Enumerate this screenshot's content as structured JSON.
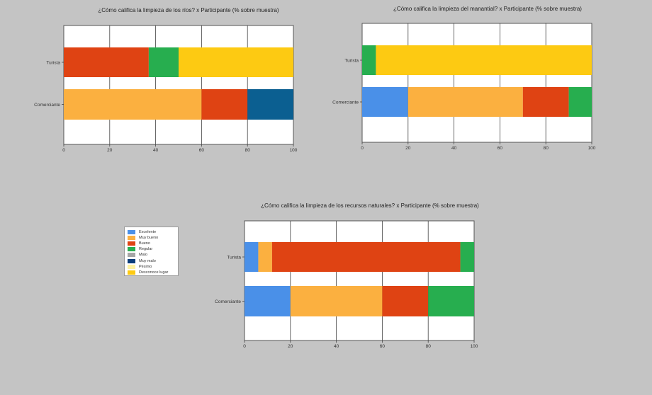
{
  "legend": [
    {
      "label": "Excelente",
      "color": "#4a90e8"
    },
    {
      "label": "Muy bueno",
      "color": "#fbb040"
    },
    {
      "label": "Bueno",
      "color": "#df4313"
    },
    {
      "label": "Regular",
      "color": "#27ae4f"
    },
    {
      "label": "Malo",
      "color": "#a6a6a6"
    },
    {
      "label": "Muy malo",
      "color": "#0b3c7a"
    },
    {
      "label": "Pésimo",
      "color": "#fff2a0"
    },
    {
      "label": "Desconoce lugar",
      "color": "#fdca12"
    }
  ],
  "chart_data": [
    {
      "type": "bar",
      "orientation": "horizontal",
      "stacked": true,
      "title": "¿Cómo califica la limpieza de los ríos? x Participante (% sobre muestra)",
      "categories": [
        "Turista",
        "Comerciante"
      ],
      "xlim": [
        0,
        100
      ],
      "xticks": [
        0,
        20,
        40,
        60,
        80,
        100
      ],
      "grid": true,
      "series": [
        {
          "name": "Bueno",
          "color": "#df4313",
          "values": [
            37,
            0
          ]
        },
        {
          "name": "Regular",
          "color": "#27ae4f",
          "values": [
            13,
            0
          ]
        },
        {
          "name": "Desconoce lugar",
          "color": "#fdca12",
          "values": [
            50,
            0
          ]
        },
        {
          "name": "Muy bueno",
          "color": "#fbb040",
          "values": [
            0,
            60
          ]
        },
        {
          "name": "Bueno",
          "color": "#df4313",
          "values": [
            0,
            20
          ]
        },
        {
          "name": "Muy malo",
          "color": "#0b5f91",
          "values": [
            0,
            20
          ]
        }
      ]
    },
    {
      "type": "bar",
      "orientation": "horizontal",
      "stacked": true,
      "title": "¿Cómo califica la limpieza del manantial? x Participante (% sobre muestra)",
      "categories": [
        "Turista",
        "Comerciante"
      ],
      "xlim": [
        0,
        100
      ],
      "xticks": [
        0,
        20,
        40,
        60,
        80,
        100
      ],
      "grid": true,
      "series": [
        {
          "name": "Regular",
          "color": "#27ae4f",
          "values": [
            6,
            0
          ]
        },
        {
          "name": "Desconoce lugar",
          "color": "#fdca12",
          "values": [
            94,
            0
          ]
        },
        {
          "name": "Excelente",
          "color": "#4a90e8",
          "values": [
            0,
            20
          ]
        },
        {
          "name": "Muy bueno",
          "color": "#fbb040",
          "values": [
            0,
            50
          ]
        },
        {
          "name": "Bueno",
          "color": "#df4313",
          "values": [
            0,
            20
          ]
        },
        {
          "name": "Regular",
          "color": "#27ae4f",
          "values": [
            0,
            10
          ]
        }
      ]
    },
    {
      "type": "bar",
      "orientation": "horizontal",
      "stacked": true,
      "title": "¿Cómo califica la limpieza de los recursos naturales? x Participante (% sobre muestra)",
      "categories": [
        "Turista",
        "Comerciante"
      ],
      "xlim": [
        0,
        100
      ],
      "xticks": [
        0,
        20,
        40,
        60,
        80,
        100
      ],
      "grid": true,
      "series": [
        {
          "name": "Excelente",
          "color": "#4a90e8",
          "values": [
            6,
            20
          ]
        },
        {
          "name": "Muy bueno",
          "color": "#fbb040",
          "values": [
            6,
            40
          ]
        },
        {
          "name": "Bueno",
          "color": "#df4313",
          "values": [
            82,
            20
          ]
        },
        {
          "name": "Regular",
          "color": "#27ae4f",
          "values": [
            6,
            20
          ]
        }
      ]
    }
  ]
}
